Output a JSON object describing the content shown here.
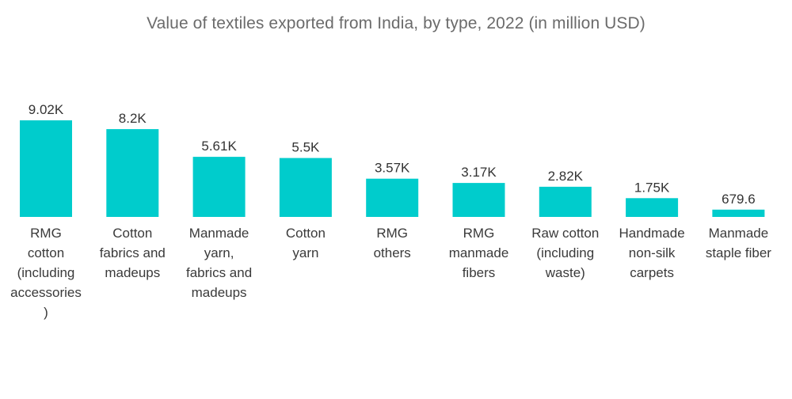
{
  "title": "Value of textiles exported from India, by type, 2022 (in million USD)",
  "colors": {
    "bar": "#00cccc",
    "title": "#6b6b6b",
    "text": "#333333"
  },
  "chart_data": {
    "type": "bar",
    "title": "Value of textiles exported from India, by type, 2022 (in million USD)",
    "xlabel": "",
    "ylabel": "",
    "ylim": [
      0,
      9020
    ],
    "grid": false,
    "categories": [
      "RMG cotton (including accessories)",
      "Cotton fabrics and madeups",
      "Manmade yarn, fabrics and madeups",
      "Cotton yarn",
      "RMG others",
      "RMG manmade fibers",
      "Raw cotton (including waste)",
      "Handmade non-silk carpets",
      "Manmade staple fiber"
    ],
    "category_lines": [
      [
        "RMG",
        "cotton",
        "(including",
        "accessories",
        ")"
      ],
      [
        "Cotton",
        "fabrics and",
        "madeups"
      ],
      [
        "Manmade",
        "yarn,",
        "fabrics and",
        "madeups"
      ],
      [
        "Cotton",
        "yarn"
      ],
      [
        "RMG",
        "others"
      ],
      [
        "RMG",
        "manmade",
        "fibers"
      ],
      [
        "Raw cotton",
        "(including",
        "waste)"
      ],
      [
        "Handmade",
        "non-silk",
        "carpets"
      ],
      [
        "Manmade",
        "staple fiber"
      ]
    ],
    "values": [
      9020,
      8200,
      5610,
      5500,
      3570,
      3170,
      2820,
      1750,
      679.6
    ],
    "data_labels": [
      "9.02K",
      "8.2K",
      "5.61K",
      "5.5K",
      "3.57K",
      "3.17K",
      "2.82K",
      "1.75K",
      "679.6"
    ]
  }
}
